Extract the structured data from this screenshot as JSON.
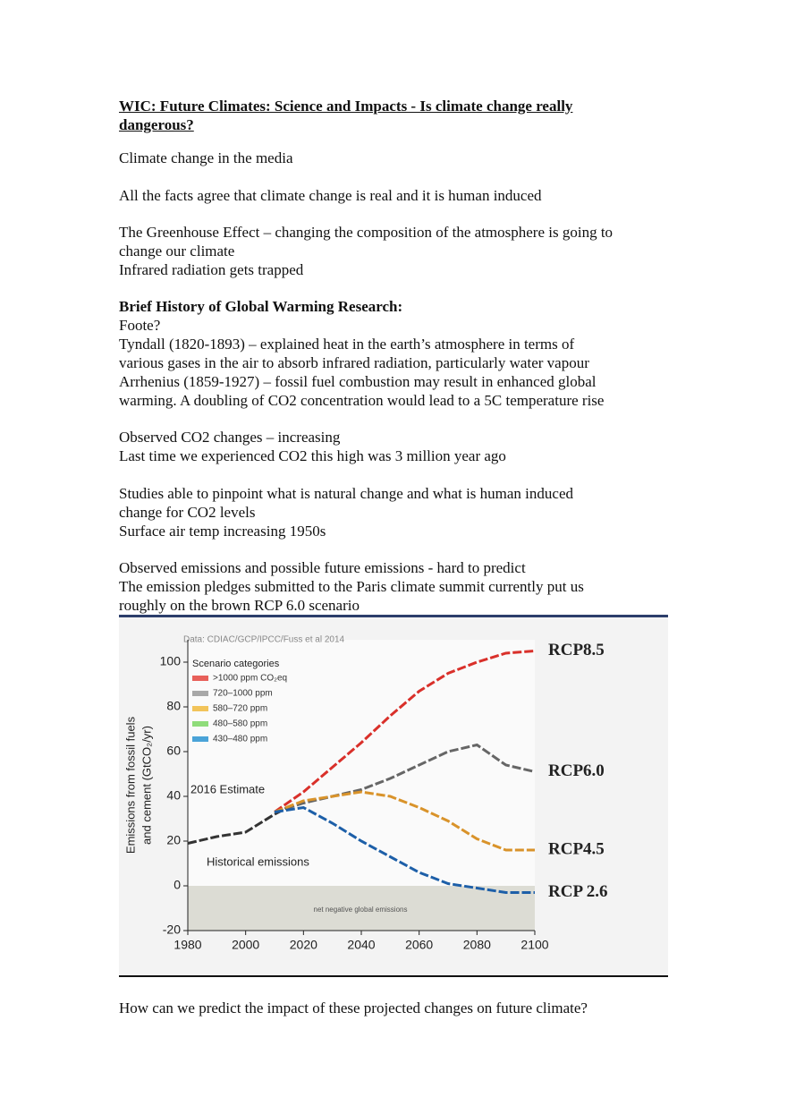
{
  "title": [
    "WIC: Future Climates: Science and Impacts - Is climate change really",
    "dangerous?"
  ],
  "blocks": [
    [
      "Climate change in the media"
    ],
    [
      "All the facts agree that climate change is real and it is human induced"
    ],
    [
      "The Greenhouse Effect – changing the composition of the atmosphere is going to",
      "change our climate",
      "Infrared radiation gets trapped"
    ],
    [
      "Brief History of Global Warming Research:",
      "Foote?",
      "Tyndall (1820-1893) – explained heat in the earth’s atmosphere in terms of",
      "various gases in the air to absorb infrared radiation, particularly water vapour",
      "Arrhenius (1859-1927) – fossil fuel combustion may result in enhanced global",
      "warming. A doubling of CO2 concentration would lead to a 5C temperature rise"
    ],
    [
      "Observed CO2 changes – increasing",
      "Last time we experienced CO2 this high was 3 million year ago"
    ],
    [
      "Studies able to pinpoint what is natural change and what is human induced",
      "change for CO2 levels",
      "Surface air temp increasing 1950s"
    ],
    [
      "Observed emissions and possible future emissions - hard to predict",
      "The emission pledges submitted to the Paris climate summit currently put us",
      "roughly on the brown RCP 6.0 scenario"
    ]
  ],
  "closing": "How can we predict the impact of these projected changes on future climate?",
  "chart_data": {
    "type": "line",
    "source": "Data: CDIAC/GCP/IPCC/Fuss et al 2014",
    "ylabel": [
      "Emissions from fossil fuels",
      "and cement (GtCO₂/yr)"
    ],
    "legend_title": "Scenario categories",
    "legend": [
      {
        "label": ">1000 ppm CO₂eq",
        "color": "#e8605a"
      },
      {
        "label": "720–1000 ppm",
        "color": "#a8a8a8"
      },
      {
        "label": "580–720 ppm",
        "color": "#f2c45a"
      },
      {
        "label": "480–580 ppm",
        "color": "#8fdc7a"
      },
      {
        "label": "430–480 ppm",
        "color": "#4aa3d8"
      }
    ],
    "annotations": [
      "2016 Estimate",
      "Historical emissions",
      "net negative global emissions"
    ],
    "xlim": [
      1980,
      2100
    ],
    "ylim": [
      -20,
      110
    ],
    "xticks": [
      1980,
      2000,
      2020,
      2040,
      2060,
      2080,
      2100
    ],
    "yticks": [
      -20,
      0,
      20,
      40,
      60,
      80,
      100
    ],
    "series": [
      {
        "name": "Historical emissions",
        "color": "#333333",
        "x": [
          1980,
          1990,
          2000,
          2010,
          2016
        ],
        "values": [
          19,
          22,
          24,
          32,
          36
        ]
      },
      {
        "name": "RCP8.5",
        "color": "#d9302a",
        "x": [
          2010,
          2020,
          2030,
          2040,
          2050,
          2060,
          2070,
          2080,
          2090,
          2100
        ],
        "values": [
          33,
          42,
          53,
          64,
          76,
          87,
          95,
          100,
          104,
          105
        ]
      },
      {
        "name": "RCP6.0",
        "color": "#666666",
        "x": [
          2010,
          2020,
          2030,
          2040,
          2050,
          2060,
          2070,
          2080,
          2090,
          2100
        ],
        "values": [
          33,
          37,
          40,
          43,
          48,
          54,
          60,
          63,
          54,
          51
        ]
      },
      {
        "name": "RCP4.5",
        "color": "#d9932a",
        "x": [
          2010,
          2020,
          2030,
          2040,
          2050,
          2060,
          2070,
          2080,
          2090,
          2100
        ],
        "values": [
          33,
          38,
          40,
          42,
          40,
          35,
          29,
          21,
          16,
          16
        ]
      },
      {
        "name": "RCP 2.6",
        "color": "#1d5fa8",
        "x": [
          2010,
          2020,
          2030,
          2040,
          2050,
          2060,
          2070,
          2080,
          2090,
          2100
        ],
        "values": [
          33,
          35,
          28,
          20,
          13,
          6,
          1,
          -1,
          -3,
          -3
        ]
      }
    ]
  }
}
